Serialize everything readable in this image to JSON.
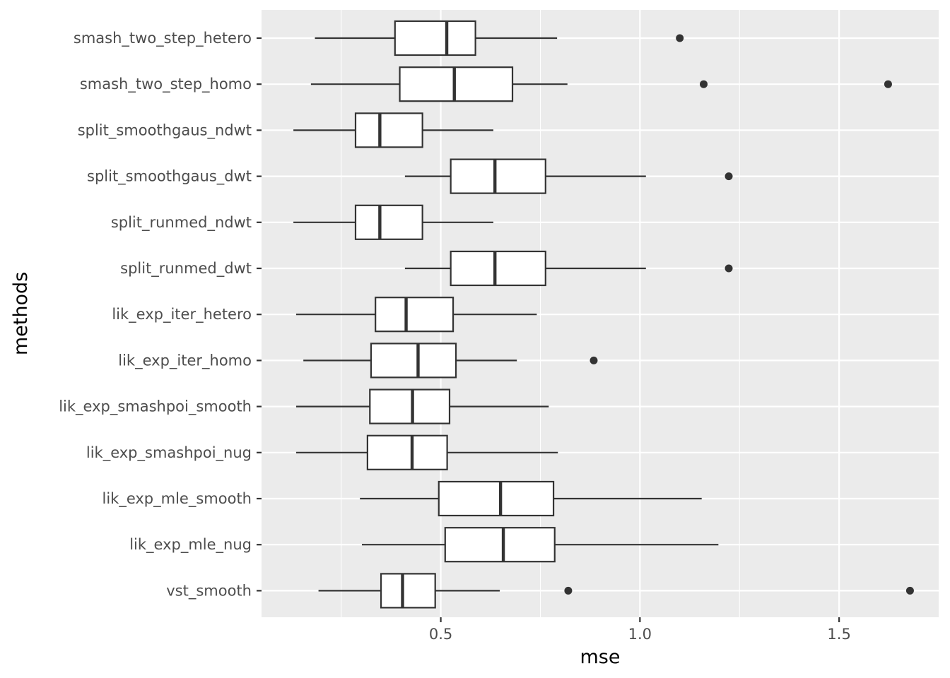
{
  "chart_data": {
    "type": "boxplot",
    "orientation": "horizontal",
    "xlabel": "mse",
    "ylabel": "methods",
    "xlim": [
      0.05,
      1.75
    ],
    "x_ticks": [
      0.5,
      1.0,
      1.5
    ],
    "x_tick_labels": [
      "0.5",
      "1.0",
      "1.5"
    ],
    "x_minor_ticks": [
      0.25,
      0.75,
      1.25
    ],
    "grid": true,
    "colors": {
      "panel_background": "#ebebeb",
      "grid_line": "#ffffff",
      "box_fill": "#ffffff",
      "box_stroke": "#333333",
      "outlier": "#333333"
    },
    "categories": [
      "smash_two_step_hetero",
      "smash_two_step_homo",
      "split_smoothgaus_ndwt",
      "split_smoothgaus_dwt",
      "split_runmed_ndwt",
      "split_runmed_dwt",
      "lik_exp_iter_hetero",
      "lik_exp_iter_homo",
      "lik_exp_smashpoi_smooth",
      "lik_exp_smashpoi_nug",
      "lik_exp_mle_smooth",
      "lik_exp_mle_nug",
      "vst_smooth"
    ],
    "boxes": [
      {
        "name": "smash_two_step_hetero",
        "whisker_low": 0.184,
        "q1": 0.385,
        "median": 0.515,
        "q3": 0.587,
        "whisker_high": 0.792,
        "outliers": [
          1.1
        ]
      },
      {
        "name": "smash_two_step_homo",
        "whisker_low": 0.174,
        "q1": 0.397,
        "median": 0.534,
        "q3": 0.68,
        "whisker_high": 0.818,
        "outliers": [
          1.16,
          1.623
        ]
      },
      {
        "name": "split_smoothgaus_ndwt",
        "whisker_low": 0.13,
        "q1": 0.286,
        "median": 0.347,
        "q3": 0.454,
        "whisker_high": 0.632,
        "outliers": []
      },
      {
        "name": "split_smoothgaus_dwt",
        "whisker_low": 0.41,
        "q1": 0.525,
        "median": 0.636,
        "q3": 0.763,
        "whisker_high": 1.015,
        "outliers": [
          1.223
        ]
      },
      {
        "name": "split_runmed_ndwt",
        "whisker_low": 0.13,
        "q1": 0.286,
        "median": 0.347,
        "q3": 0.454,
        "whisker_high": 0.632,
        "outliers": []
      },
      {
        "name": "split_runmed_dwt",
        "whisker_low": 0.41,
        "q1": 0.525,
        "median": 0.636,
        "q3": 0.763,
        "whisker_high": 1.015,
        "outliers": [
          1.223
        ]
      },
      {
        "name": "lik_exp_iter_hetero",
        "whisker_low": 0.137,
        "q1": 0.336,
        "median": 0.413,
        "q3": 0.531,
        "whisker_high": 0.741,
        "outliers": []
      },
      {
        "name": "lik_exp_iter_homo",
        "whisker_low": 0.155,
        "q1": 0.325,
        "median": 0.443,
        "q3": 0.538,
        "whisker_high": 0.691,
        "outliers": [
          0.884
        ]
      },
      {
        "name": "lik_exp_smashpoi_smooth",
        "whisker_low": 0.137,
        "q1": 0.322,
        "median": 0.429,
        "q3": 0.522,
        "whisker_high": 0.771,
        "outliers": []
      },
      {
        "name": "lik_exp_smashpoi_nug",
        "whisker_low": 0.137,
        "q1": 0.316,
        "median": 0.428,
        "q3": 0.516,
        "whisker_high": 0.794,
        "outliers": []
      },
      {
        "name": "lik_exp_mle_smooth",
        "whisker_low": 0.297,
        "q1": 0.495,
        "median": 0.65,
        "q3": 0.783,
        "whisker_high": 1.155,
        "outliers": []
      },
      {
        "name": "lik_exp_mle_nug",
        "whisker_low": 0.302,
        "q1": 0.511,
        "median": 0.657,
        "q3": 0.786,
        "whisker_high": 1.197,
        "outliers": []
      },
      {
        "name": "vst_smooth",
        "whisker_low": 0.193,
        "q1": 0.35,
        "median": 0.404,
        "q3": 0.486,
        "whisker_high": 0.648,
        "outliers": [
          0.82,
          1.678
        ]
      }
    ]
  }
}
